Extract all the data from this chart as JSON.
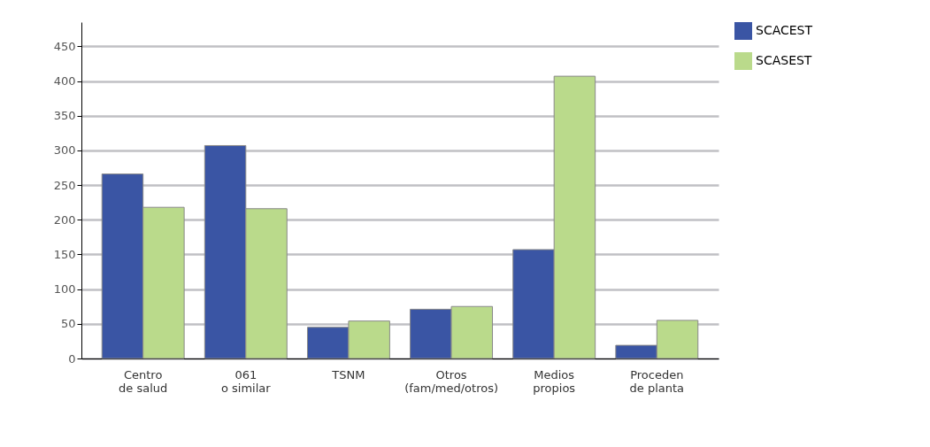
{
  "chart_data": {
    "type": "bar",
    "categories": [
      "Centro\nde salud",
      "061\no similar",
      "TSNM",
      "Otros\n(fam/med/otros)",
      "Medios\npropios",
      "Proceden\nde planta"
    ],
    "series": [
      {
        "name": "SCACEST",
        "color": "#3a55a4",
        "values": [
          266,
          307,
          45,
          71,
          157,
          19
        ]
      },
      {
        "name": "SCASEST",
        "color": "#bada8b",
        "values": [
          218,
          216,
          54,
          75,
          407,
          55
        ]
      }
    ],
    "ylim": [
      0,
      485
    ],
    "yticks": [
      0,
      50,
      100,
      150,
      200,
      250,
      300,
      350,
      400,
      450
    ],
    "grid": "y",
    "legend": "right"
  }
}
